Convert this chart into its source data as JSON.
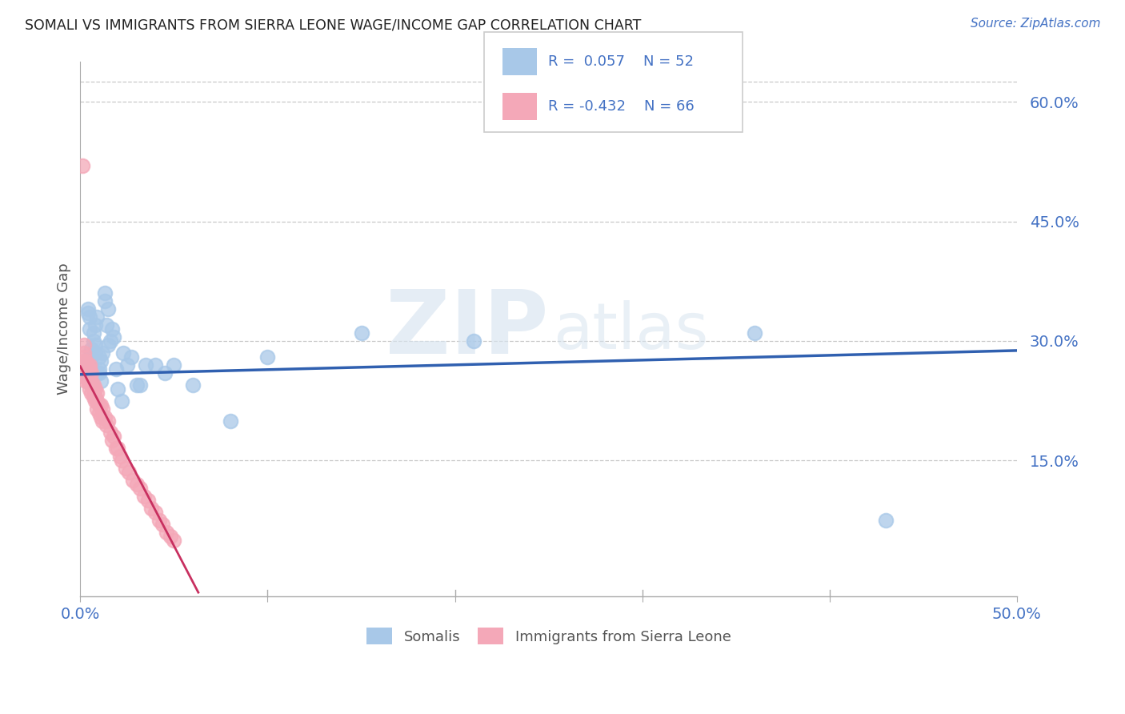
{
  "title": "SOMALI VS IMMIGRANTS FROM SIERRA LEONE WAGE/INCOME GAP CORRELATION CHART",
  "source": "Source: ZipAtlas.com",
  "ylabel": "Wage/Income Gap",
  "xlim": [
    0.0,
    0.5
  ],
  "ylim": [
    -0.02,
    0.65
  ],
  "blue_color": "#a8c8e8",
  "pink_color": "#f4a8b8",
  "blue_line_color": "#3060b0",
  "pink_line_color": "#c83060",
  "text_color": "#4472c4",
  "grid_color": "#c8c8c8",
  "watermark_zip": "ZIP",
  "watermark_atlas": "atlas",
  "somali_x": [
    0.002,
    0.003,
    0.003,
    0.004,
    0.004,
    0.005,
    0.005,
    0.005,
    0.005,
    0.006,
    0.006,
    0.006,
    0.007,
    0.007,
    0.008,
    0.008,
    0.008,
    0.009,
    0.009,
    0.01,
    0.01,
    0.01,
    0.011,
    0.011,
    0.012,
    0.013,
    0.013,
    0.014,
    0.015,
    0.015,
    0.016,
    0.017,
    0.018,
    0.019,
    0.02,
    0.022,
    0.023,
    0.025,
    0.027,
    0.03,
    0.032,
    0.035,
    0.04,
    0.045,
    0.05,
    0.06,
    0.08,
    0.1,
    0.15,
    0.21,
    0.36,
    0.43
  ],
  "somali_y": [
    0.265,
    0.27,
    0.26,
    0.34,
    0.335,
    0.26,
    0.28,
    0.315,
    0.33,
    0.265,
    0.28,
    0.29,
    0.3,
    0.31,
    0.285,
    0.295,
    0.32,
    0.26,
    0.33,
    0.265,
    0.26,
    0.28,
    0.25,
    0.275,
    0.285,
    0.35,
    0.36,
    0.32,
    0.34,
    0.295,
    0.3,
    0.315,
    0.305,
    0.265,
    0.24,
    0.225,
    0.285,
    0.27,
    0.28,
    0.245,
    0.245,
    0.27,
    0.27,
    0.26,
    0.27,
    0.245,
    0.2,
    0.28,
    0.31,
    0.3,
    0.31,
    0.075
  ],
  "sierra_x": [
    0.001,
    0.001,
    0.001,
    0.002,
    0.002,
    0.002,
    0.002,
    0.002,
    0.003,
    0.003,
    0.003,
    0.003,
    0.003,
    0.003,
    0.004,
    0.004,
    0.004,
    0.004,
    0.004,
    0.005,
    0.005,
    0.005,
    0.005,
    0.006,
    0.006,
    0.006,
    0.006,
    0.007,
    0.007,
    0.007,
    0.008,
    0.008,
    0.008,
    0.009,
    0.009,
    0.009,
    0.01,
    0.01,
    0.011,
    0.011,
    0.012,
    0.012,
    0.013,
    0.014,
    0.015,
    0.016,
    0.017,
    0.018,
    0.019,
    0.02,
    0.021,
    0.022,
    0.024,
    0.026,
    0.028,
    0.03,
    0.032,
    0.034,
    0.036,
    0.038,
    0.04,
    0.042,
    0.044,
    0.046,
    0.048,
    0.05
  ],
  "sierra_y": [
    0.52,
    0.275,
    0.265,
    0.295,
    0.285,
    0.27,
    0.28,
    0.265,
    0.265,
    0.25,
    0.26,
    0.275,
    0.255,
    0.27,
    0.26,
    0.27,
    0.25,
    0.26,
    0.255,
    0.265,
    0.25,
    0.24,
    0.27,
    0.26,
    0.25,
    0.245,
    0.235,
    0.245,
    0.24,
    0.23,
    0.24,
    0.23,
    0.225,
    0.235,
    0.225,
    0.215,
    0.22,
    0.21,
    0.22,
    0.205,
    0.215,
    0.2,
    0.205,
    0.195,
    0.2,
    0.185,
    0.175,
    0.18,
    0.165,
    0.165,
    0.155,
    0.15,
    0.14,
    0.135,
    0.125,
    0.12,
    0.115,
    0.105,
    0.1,
    0.09,
    0.085,
    0.075,
    0.07,
    0.06,
    0.055,
    0.05
  ],
  "blue_r": 0.057,
  "blue_intercept": 0.258,
  "blue_slope": 0.06,
  "pink_r": -0.432,
  "pink_intercept": 0.268,
  "pink_slope": -4.5
}
